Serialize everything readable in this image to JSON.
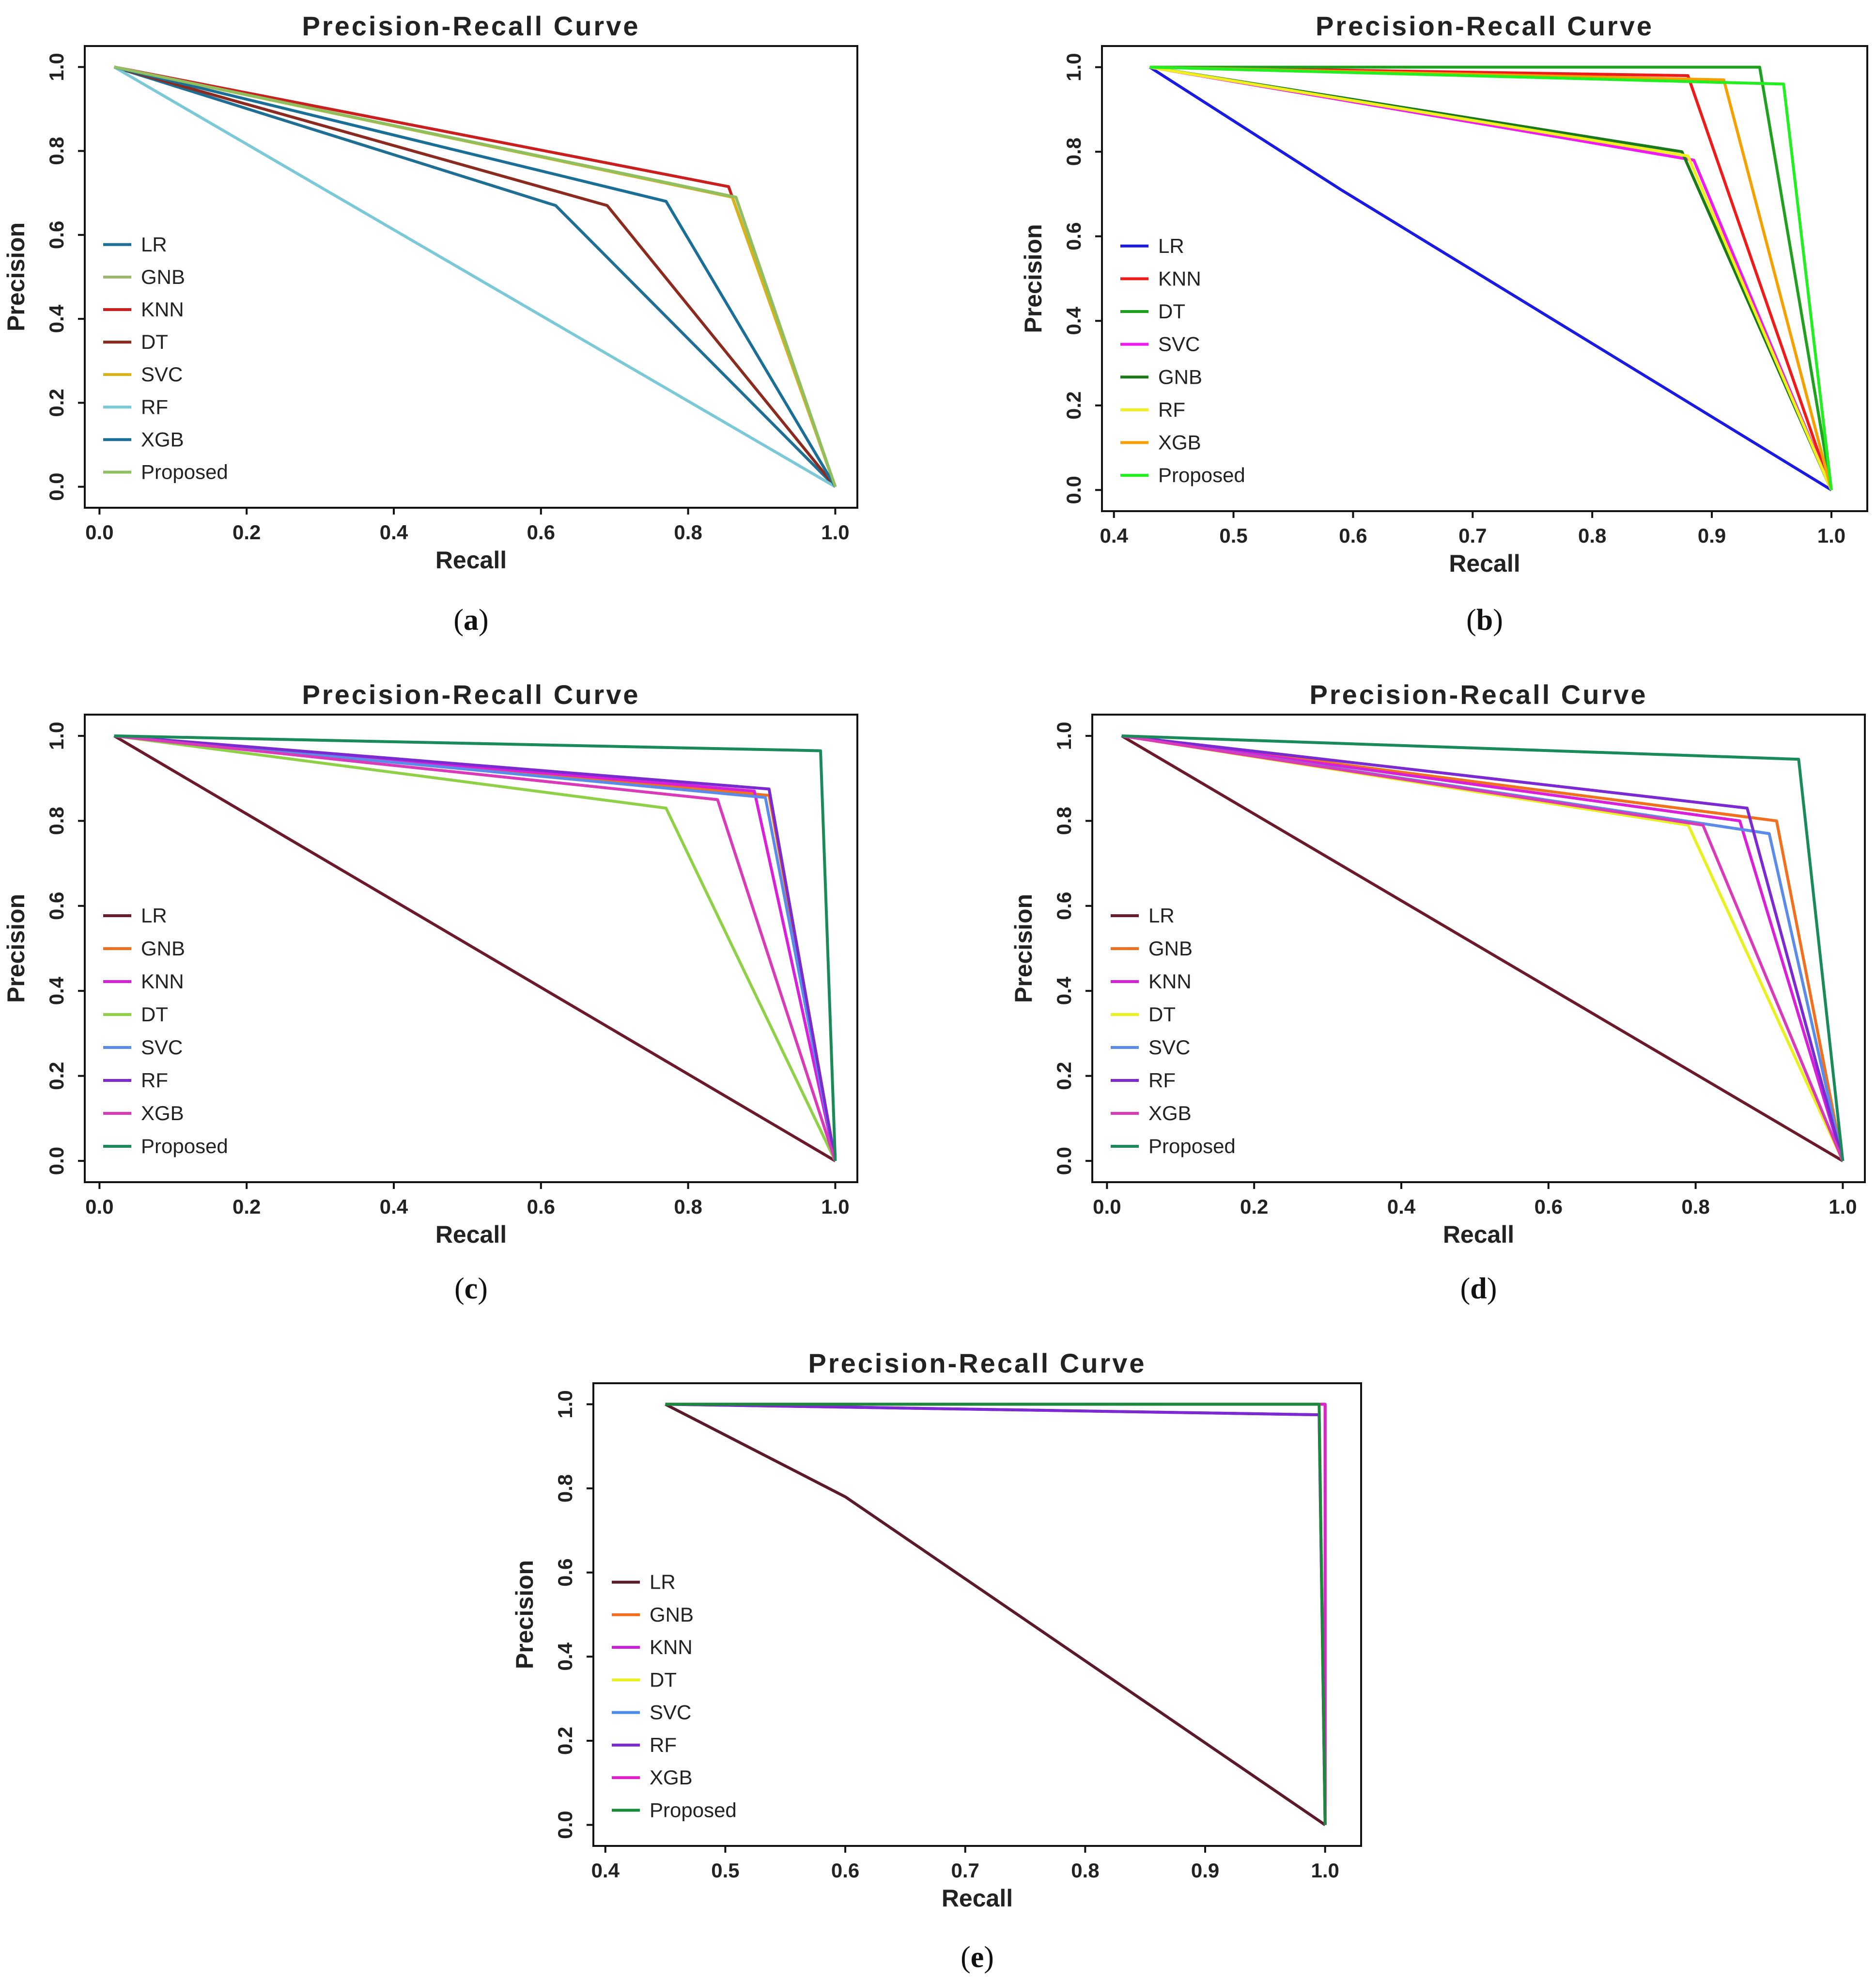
{
  "chart_data": [
    {
      "panel": "a",
      "type": "line",
      "title": "Precision-Recall Curve",
      "xlabel": "Recall",
      "ylabel": "Precision",
      "xlim": [
        -0.02,
        1.03
      ],
      "ylim": [
        -0.05,
        1.05
      ],
      "xticks": [
        "0.0",
        "0.2",
        "0.4",
        "0.6",
        "0.8",
        "1.0"
      ],
      "yticks": [
        "0.0",
        "0.2",
        "0.4",
        "0.6",
        "0.8",
        "1.0"
      ],
      "caption": "a",
      "legend": "left",
      "series": [
        {
          "name": "LR",
          "color": "#1f6e93",
          "x": [
            0.02,
            0.62,
            1.0
          ],
          "y": [
            1.0,
            0.67,
            0.0
          ]
        },
        {
          "name": "GNB",
          "color": "#9bb86a",
          "x": [
            0.02,
            0.86,
            1.0
          ],
          "y": [
            1.0,
            0.69,
            0.0
          ]
        },
        {
          "name": "KNN",
          "color": "#c8201f",
          "x": [
            0.02,
            0.855,
            1.0
          ],
          "y": [
            1.0,
            0.715,
            0.0
          ]
        },
        {
          "name": "DT",
          "color": "#8b2a1f",
          "x": [
            0.02,
            0.69,
            1.0
          ],
          "y": [
            1.0,
            0.67,
            0.0
          ]
        },
        {
          "name": "SVC",
          "color": "#d6b21d",
          "x": [
            0.02,
            0.86,
            1.0
          ],
          "y": [
            1.0,
            0.69,
            0.0
          ]
        },
        {
          "name": "RF",
          "color": "#7bc8d6",
          "x": [
            0.02,
            1.0
          ],
          "y": [
            1.0,
            0.0
          ]
        },
        {
          "name": "XGB",
          "color": "#1b6e96",
          "x": [
            0.02,
            0.77,
            1.0
          ],
          "y": [
            1.0,
            0.68,
            0.0
          ]
        },
        {
          "name": "Proposed",
          "color": "#8fbf5e",
          "x": [
            0.02,
            0.865,
            1.0
          ],
          "y": [
            1.0,
            0.69,
            0.0
          ]
        }
      ]
    },
    {
      "panel": "b",
      "type": "line",
      "title": "Precision-Recall Curve",
      "xlabel": "Recall",
      "ylabel": "Precision",
      "xlim": [
        0.39,
        1.03
      ],
      "ylim": [
        -0.05,
        1.05
      ],
      "xticks": [
        "0.4",
        "0.5",
        "0.6",
        "0.7",
        "0.8",
        "0.9",
        "1.0"
      ],
      "yticks": [
        "0.0",
        "0.2",
        "0.4",
        "0.6",
        "0.8",
        "1.0"
      ],
      "caption": "b",
      "legend": "left",
      "series": [
        {
          "name": "LR",
          "color": "#1a1ae0",
          "x": [
            0.43,
            0.59,
            1.0
          ],
          "y": [
            1.0,
            0.71,
            0.0
          ]
        },
        {
          "name": "KNN",
          "color": "#ee1b1b",
          "x": [
            0.43,
            0.88,
            1.0
          ],
          "y": [
            1.0,
            0.98,
            0.0
          ]
        },
        {
          "name": "DT",
          "color": "#1fa01f",
          "x": [
            0.43,
            0.94,
            1.0
          ],
          "y": [
            1.0,
            1.0,
            0.0
          ]
        },
        {
          "name": "SVC",
          "color": "#ee1bee",
          "x": [
            0.43,
            0.885,
            1.0
          ],
          "y": [
            1.0,
            0.78,
            0.0
          ]
        },
        {
          "name": "GNB",
          "color": "#1a7a1a",
          "x": [
            0.43,
            0.875,
            1.0
          ],
          "y": [
            1.0,
            0.8,
            0.0
          ]
        },
        {
          "name": "RF",
          "color": "#f0f020",
          "x": [
            0.43,
            0.88,
            1.0
          ],
          "y": [
            1.0,
            0.79,
            0.0
          ]
        },
        {
          "name": "XGB",
          "color": "#f5a000",
          "x": [
            0.43,
            0.91,
            1.0
          ],
          "y": [
            1.0,
            0.97,
            0.0
          ]
        },
        {
          "name": "Proposed",
          "color": "#22ee22",
          "x": [
            0.43,
            0.96,
            1.0
          ],
          "y": [
            1.0,
            0.96,
            0.0
          ]
        }
      ]
    },
    {
      "panel": "c",
      "type": "line",
      "title": "Precision-Recall Curve",
      "xlabel": "Recall",
      "ylabel": "Precision",
      "xlim": [
        -0.02,
        1.03
      ],
      "ylim": [
        -0.05,
        1.05
      ],
      "xticks": [
        "0.0",
        "0.2",
        "0.4",
        "0.6",
        "0.8",
        "1.0"
      ],
      "yticks": [
        "0.0",
        "0.2",
        "0.4",
        "0.6",
        "0.8",
        "1.0"
      ],
      "caption": "c",
      "legend": "left",
      "series": [
        {
          "name": "LR",
          "color": "#6a1a2a",
          "x": [
            0.02,
            1.0
          ],
          "y": [
            1.0,
            0.0
          ]
        },
        {
          "name": "GNB",
          "color": "#f07020",
          "x": [
            0.02,
            0.91,
            1.0
          ],
          "y": [
            1.0,
            0.86,
            0.0
          ]
        },
        {
          "name": "KNN",
          "color": "#d820d8",
          "x": [
            0.02,
            0.89,
            1.0
          ],
          "y": [
            1.0,
            0.87,
            0.0
          ]
        },
        {
          "name": "DT",
          "color": "#8fd048",
          "x": [
            0.02,
            0.77,
            1.0
          ],
          "y": [
            1.0,
            0.83,
            0.0
          ]
        },
        {
          "name": "SVC",
          "color": "#5a8be8",
          "x": [
            0.02,
            0.905,
            1.0
          ],
          "y": [
            1.0,
            0.855,
            0.0
          ]
        },
        {
          "name": "RF",
          "color": "#7a2ad0",
          "x": [
            0.02,
            0.91,
            1.0
          ],
          "y": [
            1.0,
            0.875,
            0.0
          ]
        },
        {
          "name": "XGB",
          "color": "#d83ab8",
          "x": [
            0.02,
            0.84,
            1.0
          ],
          "y": [
            1.0,
            0.85,
            0.0
          ]
        },
        {
          "name": "Proposed",
          "color": "#1a8a5a",
          "x": [
            0.02,
            0.98,
            1.0
          ],
          "y": [
            1.0,
            0.965,
            0.0
          ]
        }
      ]
    },
    {
      "panel": "d",
      "type": "line",
      "title": "Precision-Recall Curve",
      "xlabel": "Recall",
      "ylabel": "Precision",
      "xlim": [
        -0.02,
        1.03
      ],
      "ylim": [
        -0.05,
        1.05
      ],
      "xticks": [
        "0.0",
        "0.2",
        "0.4",
        "0.6",
        "0.8",
        "1.0"
      ],
      "yticks": [
        "0.0",
        "0.2",
        "0.4",
        "0.6",
        "0.8",
        "1.0"
      ],
      "caption": "d",
      "legend": "left",
      "series": [
        {
          "name": "LR",
          "color": "#6a1a2a",
          "x": [
            0.02,
            1.0
          ],
          "y": [
            1.0,
            0.0
          ]
        },
        {
          "name": "GNB",
          "color": "#f07020",
          "x": [
            0.02,
            0.91,
            1.0
          ],
          "y": [
            1.0,
            0.8,
            0.0
          ]
        },
        {
          "name": "KNN",
          "color": "#d820d8",
          "x": [
            0.02,
            0.86,
            1.0
          ],
          "y": [
            1.0,
            0.8,
            0.0
          ]
        },
        {
          "name": "DT",
          "color": "#e8f020",
          "x": [
            0.02,
            0.79,
            1.0
          ],
          "y": [
            1.0,
            0.79,
            0.0
          ]
        },
        {
          "name": "SVC",
          "color": "#5a8be8",
          "x": [
            0.02,
            0.9,
            1.0
          ],
          "y": [
            1.0,
            0.77,
            0.0
          ]
        },
        {
          "name": "RF",
          "color": "#7a2ad0",
          "x": [
            0.02,
            0.87,
            1.0
          ],
          "y": [
            1.0,
            0.83,
            0.0
          ]
        },
        {
          "name": "XGB",
          "color": "#d83ab8",
          "x": [
            0.02,
            0.81,
            1.0
          ],
          "y": [
            1.0,
            0.79,
            0.0
          ]
        },
        {
          "name": "Proposed",
          "color": "#1a8a5a",
          "x": [
            0.02,
            0.94,
            1.0
          ],
          "y": [
            1.0,
            0.945,
            0.0
          ]
        }
      ]
    },
    {
      "panel": "e",
      "type": "line",
      "title": "Precision-Recall Curve",
      "xlabel": "Recall",
      "ylabel": "Precision",
      "xlim": [
        0.39,
        1.03
      ],
      "ylim": [
        -0.05,
        1.05
      ],
      "xticks": [
        "0.4",
        "0.5",
        "0.6",
        "0.7",
        "0.8",
        "0.9",
        "1.0"
      ],
      "yticks": [
        "0.0",
        "0.2",
        "0.4",
        "0.6",
        "0.8",
        "1.0"
      ],
      "caption": "e",
      "legend": "left",
      "series": [
        {
          "name": "LR",
          "color": "#5a1a2a",
          "x": [
            0.45,
            0.6,
            1.0
          ],
          "y": [
            1.0,
            0.78,
            0.0
          ]
        },
        {
          "name": "GNB",
          "color": "#f07020",
          "x": [
            0.45,
            1.0,
            1.0
          ],
          "y": [
            1.0,
            1.0,
            0.0
          ]
        },
        {
          "name": "KNN",
          "color": "#c820d8",
          "x": [
            0.45,
            0.995,
            1.0
          ],
          "y": [
            1.0,
            0.975,
            0.0
          ]
        },
        {
          "name": "DT",
          "color": "#e8f020",
          "x": [
            0.45,
            1.0,
            1.0
          ],
          "y": [
            1.0,
            1.0,
            0.0
          ]
        },
        {
          "name": "SVC",
          "color": "#4a8be8",
          "x": [
            0.45,
            1.0,
            1.0
          ],
          "y": [
            1.0,
            1.0,
            0.0
          ]
        },
        {
          "name": "RF",
          "color": "#7a2ad0",
          "x": [
            0.45,
            0.995,
            1.0
          ],
          "y": [
            1.0,
            0.975,
            0.0
          ]
        },
        {
          "name": "XGB",
          "color": "#e020c8",
          "x": [
            0.45,
            1.0,
            1.0
          ],
          "y": [
            1.0,
            1.0,
            0.0
          ]
        },
        {
          "name": "Proposed",
          "color": "#1a8a3a",
          "x": [
            0.45,
            0.995,
            1.0
          ],
          "y": [
            1.0,
            1.0,
            0.0
          ]
        }
      ]
    }
  ]
}
